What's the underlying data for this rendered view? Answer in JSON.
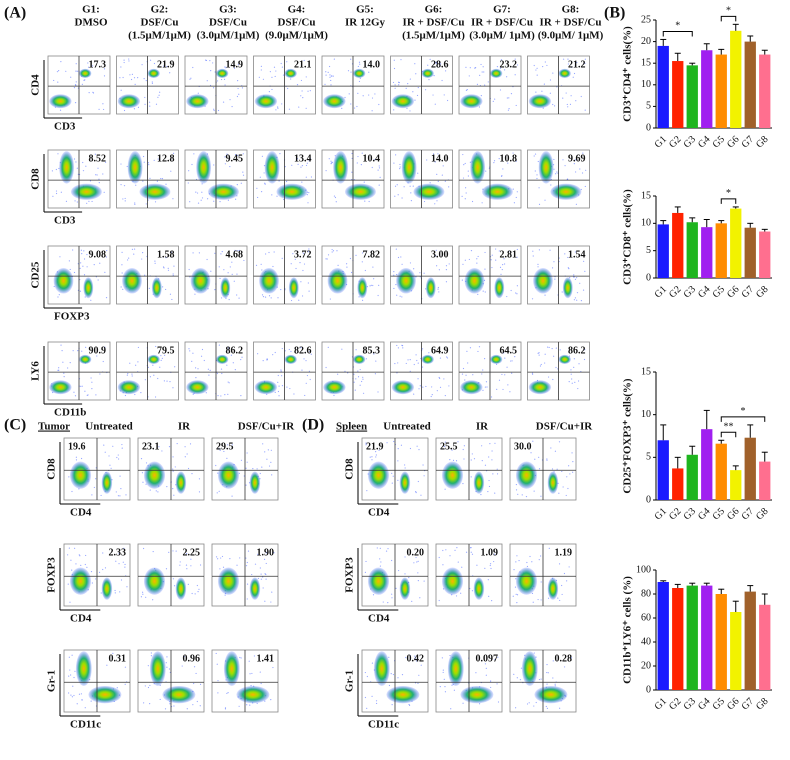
{
  "panel_a": {
    "label": "(A)",
    "groups": [
      {
        "lines": [
          "G1:",
          "DMSO"
        ]
      },
      {
        "lines": [
          "G2:",
          "DSF/Cu",
          "(1.5μM/1μM)"
        ]
      },
      {
        "lines": [
          "G3:",
          "DSF/Cu",
          "(3.0μM/1μM)"
        ]
      },
      {
        "lines": [
          "G4:",
          "DSF/Cu",
          "(9.0μM/1μM)"
        ]
      },
      {
        "lines": [
          "G5:",
          "IR 12Gy"
        ]
      },
      {
        "lines": [
          "G6:",
          "IR + DSF/Cu",
          "(1.5μM/1μM)"
        ]
      },
      {
        "lines": [
          "G7:",
          "IR + DSF/Cu",
          "(3.0μM/ 1μM)"
        ]
      },
      {
        "lines": [
          "G8:",
          "IR + DSF/Cu",
          "(9.0μM/ 1μM)"
        ]
      }
    ],
    "rows": [
      {
        "y_axis": "CD4",
        "x_axis": "CD3",
        "values": [
          "17.3",
          "21.9",
          "14.9",
          "21.1",
          "14.0",
          "28.6",
          "23.2",
          "21.2"
        ]
      },
      {
        "y_axis": "CD8",
        "x_axis": "CD3",
        "values": [
          "8.52",
          "12.8",
          "9.45",
          "13.4",
          "10.4",
          "14.0",
          "10.8",
          "9.69"
        ]
      },
      {
        "y_axis": "CD25",
        "x_axis": "FOXP3",
        "values": [
          "9.08",
          "1.58",
          "4.68",
          "3.72",
          "7.82",
          "3.00",
          "2.81",
          "1.54"
        ]
      },
      {
        "y_axis": "LY6",
        "x_axis": "CD11b",
        "values": [
          "90.9",
          "79.5",
          "86.2",
          "82.6",
          "85.3",
          "64.9",
          "64.5",
          "86.2"
        ]
      }
    ]
  },
  "panel_b": {
    "label": "(B)",
    "charts": [
      {
        "type": "bar",
        "ylabel": "CD3⁺CD4⁺ cells(%)",
        "categories": [
          "G1",
          "G2",
          "G3",
          "G4",
          "G5",
          "G6",
          "G7",
          "G8"
        ],
        "values": [
          19,
          15.5,
          14.5,
          18,
          17,
          22.5,
          20,
          17
        ],
        "errors": [
          1.5,
          1.8,
          0.5,
          1.5,
          1.2,
          1.5,
          1.3,
          1
        ],
        "colors": [
          "#1a1aff",
          "#ff2200",
          "#1fb51f",
          "#a020f0",
          "#ff8c00",
          "#f2f200",
          "#a0612b",
          "#ff6f8f"
        ],
        "ylim": [
          0,
          25
        ],
        "yticks": [
          0,
          5,
          10,
          15,
          20,
          25
        ],
        "significance": [
          {
            "label": "*",
            "between": [
              "G1",
              "G3"
            ]
          },
          {
            "label": "*",
            "between": [
              "G5",
              "G6"
            ]
          }
        ]
      },
      {
        "type": "bar",
        "ylabel": "CD3⁺CD8⁺ cells(%)",
        "categories": [
          "G1",
          "G2",
          "G3",
          "G4",
          "G5",
          "G6",
          "G7",
          "G8"
        ],
        "values": [
          9.8,
          11.9,
          10.2,
          9.3,
          10,
          12.7,
          9.2,
          8.5
        ],
        "errors": [
          0.7,
          1.1,
          0.8,
          1.4,
          0.5,
          0.3,
          0.8,
          0.4
        ],
        "colors": [
          "#1a1aff",
          "#ff2200",
          "#1fb51f",
          "#a020f0",
          "#ff8c00",
          "#f2f200",
          "#a0612b",
          "#ff6f8f"
        ],
        "ylim": [
          0,
          15
        ],
        "yticks": [
          0,
          5,
          10,
          15
        ],
        "significance": [
          {
            "label": "*",
            "between": [
              "G5",
              "G6"
            ]
          }
        ]
      },
      {
        "type": "bar",
        "ylabel": "CD25⁺FOXP3⁺ cells(%)",
        "categories": [
          "G1",
          "G2",
          "G3",
          "G4",
          "G5",
          "G6",
          "G7",
          "G8"
        ],
        "values": [
          7,
          3.7,
          5.3,
          8.3,
          6.6,
          3.5,
          7.3,
          4.5
        ],
        "errors": [
          1.8,
          1.3,
          1,
          2.2,
          0.4,
          0.5,
          1.5,
          1.1
        ],
        "colors": [
          "#1a1aff",
          "#ff2200",
          "#1fb51f",
          "#a020f0",
          "#ff8c00",
          "#f2f200",
          "#a0612b",
          "#ff6f8f"
        ],
        "ylim": [
          0,
          15
        ],
        "yticks": [
          0,
          5,
          10,
          15
        ],
        "significance": [
          {
            "label": "**",
            "between": [
              "G5",
              "G6"
            ]
          },
          {
            "label": "*",
            "between": [
              "G5",
              "G8"
            ]
          }
        ]
      },
      {
        "type": "bar",
        "ylabel": "CD11b⁺LY6⁺ cells (%)",
        "categories": [
          "G1",
          "G2",
          "G3",
          "G4",
          "G5",
          "G6",
          "G7",
          "G8"
        ],
        "values": [
          90,
          85,
          87,
          87,
          80,
          65,
          82,
          71
        ],
        "errors": [
          1,
          3,
          2,
          2,
          4,
          9,
          5,
          9
        ],
        "colors": [
          "#1a1aff",
          "#ff2200",
          "#1fb51f",
          "#a020f0",
          "#ff8c00",
          "#f2f200",
          "#a0612b",
          "#ff6f8f"
        ],
        "ylim": [
          0,
          100
        ],
        "yticks": [
          0,
          20,
          40,
          60,
          80,
          100
        ],
        "significance": []
      }
    ]
  },
  "panel_c": {
    "label": "(C)",
    "tissue": "Tumor",
    "columns": [
      "Untreated",
      "IR",
      "DSF/Cu+IR"
    ],
    "rows": [
      {
        "y_axis": "CD8",
        "x_axis": "CD4",
        "values": [
          "19.6",
          "23.1",
          "29.5"
        ]
      },
      {
        "y_axis": "FOXP3",
        "x_axis": "CD4",
        "values": [
          "2.33",
          "2.25",
          "1.90"
        ]
      },
      {
        "y_axis": "Gr-1",
        "x_axis": "CD11c",
        "values": [
          "0.31",
          "0.96",
          "1.41"
        ]
      }
    ]
  },
  "panel_d": {
    "label": "(D)",
    "tissue": "Spleen",
    "columns": [
      "Untreated",
      "IR",
      "DSF/Cu+IR"
    ],
    "rows": [
      {
        "y_axis": "CD8",
        "x_axis": "CD4",
        "values": [
          "21.9",
          "25.5",
          "30.0"
        ]
      },
      {
        "y_axis": "FOXP3",
        "x_axis": "CD4",
        "values": [
          "0.20",
          "1.09",
          "1.19"
        ]
      },
      {
        "y_axis": "Gr-1",
        "x_axis": "CD11c",
        "values": [
          "0.42",
          "0.097",
          "0.28"
        ]
      }
    ]
  }
}
